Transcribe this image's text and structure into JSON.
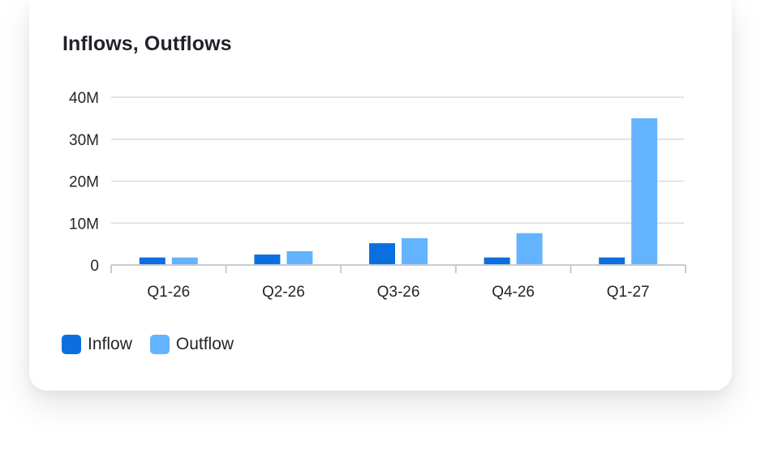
{
  "card": {
    "title": "Inflows, Outflows"
  },
  "colors": {
    "inflow": "#0b6fe0",
    "outflow": "#63b3ff",
    "grid": "#d9dbe0",
    "axis": "#c7cbd1"
  },
  "chart_data": {
    "type": "bar",
    "title": "Inflows, Outflows",
    "xlabel": "",
    "ylabel": "",
    "categories": [
      "Q1-26",
      "Q2-26",
      "Q3-26",
      "Q4-26",
      "Q1-27"
    ],
    "series": [
      {
        "name": "Inflow",
        "values": [
          1.8,
          2.5,
          5.2,
          1.8,
          1.8
        ]
      },
      {
        "name": "Outflow",
        "values": [
          1.8,
          3.3,
          6.4,
          7.6,
          35.0
        ]
      }
    ],
    "ylim": [
      0,
      40
    ],
    "yticks": [
      0,
      10,
      20,
      30,
      40
    ],
    "ytick_labels": [
      "0",
      "10M",
      "20M",
      "30M",
      "40M"
    ],
    "grid": true,
    "legend_position": "bottom-left"
  }
}
